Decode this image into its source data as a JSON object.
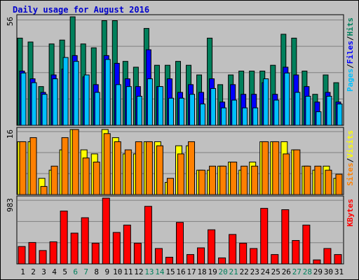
{
  "title": "Daily usage for August 2016",
  "colors": {
    "hits": "#00805c",
    "files": "#0000ff",
    "pages": "#00c0ff",
    "visits": "#ffff00",
    "sites": "#ff8000",
    "kbytes": "#ff0000",
    "weekend_label": "#00805c",
    "weekday_label": "#000000"
  },
  "chart_data": [
    {
      "type": "bar",
      "panel": "top",
      "ymax_label": "56",
      "ylim": [
        0,
        56
      ],
      "categories": [
        "1",
        "2",
        "3",
        "4",
        "5",
        "6",
        "7",
        "8",
        "9",
        "10",
        "11",
        "12",
        "13",
        "14",
        "15",
        "16",
        "17",
        "18",
        "19",
        "20",
        "21",
        "22",
        "23",
        "24",
        "25",
        "26",
        "27",
        "28",
        "29",
        "30",
        "31"
      ],
      "weekend_days": [
        "6",
        "7",
        "13",
        "14",
        "20",
        "21",
        "27",
        "28"
      ],
      "legend": [
        "Pages",
        "Files",
        "Hits"
      ],
      "legend_separator": "/",
      "series": [
        {
          "name": "Hits",
          "color_key": "hits",
          "values": [
            45,
            43,
            20,
            42,
            44,
            56,
            42,
            40,
            54,
            54,
            33,
            30,
            50,
            31,
            31,
            33,
            31,
            26,
            45,
            21,
            26,
            28,
            28,
            28,
            31,
            47,
            45,
            28,
            16,
            26,
            22
          ]
        },
        {
          "name": "Files",
          "color_key": "files",
          "values": [
            28,
            24,
            17,
            26,
            29,
            36,
            25,
            21,
            36,
            32,
            24,
            20,
            39,
            20,
            24,
            17,
            21,
            17,
            24,
            12,
            21,
            16,
            16,
            22,
            16,
            30,
            26,
            20,
            12,
            17,
            12
          ]
        },
        {
          "name": "Pages",
          "color_key": "pages",
          "values": [
            27,
            22,
            16,
            24,
            35,
            33,
            26,
            17,
            34,
            21,
            20,
            15,
            24,
            20,
            14,
            14,
            16,
            11,
            19,
            9,
            13,
            9,
            9,
            24,
            13,
            27,
            17,
            15,
            7,
            15,
            11
          ]
        }
      ]
    },
    {
      "type": "bar",
      "panel": "middle",
      "ymax_label": "16",
      "ylim": [
        0,
        16
      ],
      "categories": [
        "1",
        "2",
        "3",
        "4",
        "5",
        "6",
        "7",
        "8",
        "9",
        "10",
        "11",
        "12",
        "13",
        "14",
        "15",
        "16",
        "17",
        "18",
        "19",
        "20",
        "21",
        "22",
        "23",
        "24",
        "25",
        "26",
        "27",
        "28",
        "29",
        "30",
        "31"
      ],
      "legend": [
        "Sites",
        "Visits"
      ],
      "legend_separator": "/",
      "series": [
        {
          "name": "Visits",
          "color_key": "visits",
          "values": [
            13,
            13,
            4,
            6,
            11,
            16,
            11,
            10,
            16,
            14,
            10,
            10,
            13,
            13,
            3,
            12,
            12,
            6,
            6,
            7,
            8,
            6,
            8,
            13,
            13,
            13,
            11,
            7,
            6,
            7,
            4
          ]
        },
        {
          "name": "Sites",
          "color_key": "sites",
          "values": [
            13,
            14,
            2,
            7,
            14,
            16,
            9,
            8,
            15,
            13,
            11,
            13,
            13,
            12,
            4,
            10,
            13,
            6,
            7,
            7,
            8,
            7,
            7,
            13,
            13,
            10,
            11,
            7,
            7,
            6,
            5
          ]
        }
      ]
    },
    {
      "type": "bar",
      "panel": "bottom",
      "ymax_label": "983",
      "ylim": [
        0,
        983
      ],
      "categories": [
        "1",
        "2",
        "3",
        "4",
        "5",
        "6",
        "7",
        "8",
        "9",
        "10",
        "11",
        "12",
        "13",
        "14",
        "15",
        "16",
        "17",
        "18",
        "19",
        "20",
        "21",
        "22",
        "23",
        "24",
        "25",
        "26",
        "27",
        "28",
        "29",
        "30",
        "31"
      ],
      "legend": [
        "KBytes"
      ],
      "series": [
        {
          "name": "KBytes",
          "color_key": "kbytes",
          "values": [
            260,
            320,
            200,
            330,
            790,
            460,
            690,
            310,
            983,
            470,
            580,
            310,
            860,
            230,
            100,
            620,
            140,
            240,
            510,
            90,
            440,
            310,
            230,
            830,
            140,
            810,
            350,
            580,
            60,
            230,
            140
          ]
        }
      ]
    }
  ]
}
